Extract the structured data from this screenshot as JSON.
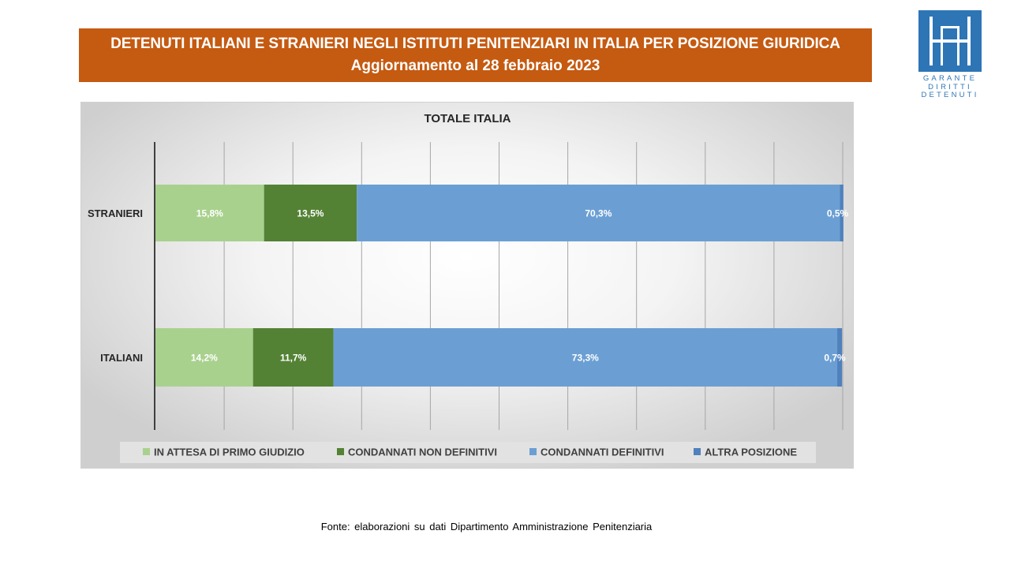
{
  "header": {
    "title_line1": "DETENUTI ITALIANI E STRANIERI NEGLI ISTITUTI PENITENZIARI IN ITALIA PER POSIZIONE GIURIDICA",
    "title_line2": "Aggiornamento al 28 febbraio 2023",
    "background_color": "#c55a11"
  },
  "logo": {
    "lines": [
      "GARANTE",
      "DIRITTI",
      "DETENUTI"
    ],
    "color": "#2e75b6"
  },
  "chart_data": {
    "type": "bar",
    "orientation": "horizontal",
    "stacked": true,
    "title": "TOTALE ITALIA",
    "categories": [
      "STRANIERI",
      "ITALIANI"
    ],
    "series": [
      {
        "name": "IN ATTESA DI PRIMO GIUDIZIO",
        "values": [
          15.8,
          14.2
        ],
        "labels": [
          "15,8%",
          "14,2%"
        ],
        "color": "#a9d18e"
      },
      {
        "name": "CONDANNATI NON DEFINITIVI",
        "values": [
          13.5,
          11.7
        ],
        "labels": [
          "13,5%",
          "11,7%"
        ],
        "color": "#548235"
      },
      {
        "name": "CONDANNATI DEFINITIVI",
        "values": [
          70.3,
          73.3
        ],
        "labels": [
          "70,3%",
          "73,3%"
        ],
        "color": "#6b9fd4"
      },
      {
        "name": "ALTRA POSIZIONE",
        "values": [
          0.5,
          0.7
        ],
        "labels": [
          "0,5%",
          "0,7%"
        ],
        "color": "#4f81bd"
      }
    ],
    "xlim": [
      0,
      100
    ],
    "grid": true,
    "legend_position": "bottom"
  },
  "footer": {
    "source": "Fonte: elaborazioni su dati Dipartimento Amministrazione Penitenziaria"
  }
}
